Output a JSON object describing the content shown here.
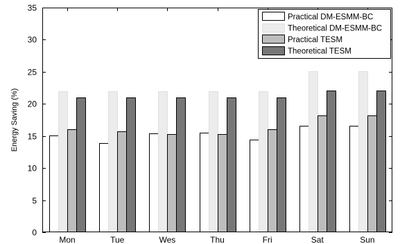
{
  "chart_data": {
    "type": "bar",
    "title": "",
    "xlabel": "",
    "ylabel": "Energy Saving (%)",
    "ylim": [
      0,
      35
    ],
    "yticks": [
      0,
      5,
      10,
      15,
      20,
      25,
      30,
      35
    ],
    "grid": false,
    "legend_position": "top-right",
    "categories": [
      "Mon",
      "Tue",
      "Wes",
      "Thu",
      "Fri",
      "Sat",
      "Sun"
    ],
    "series": [
      {
        "name": "Practical DM-ESMM-BC",
        "color": "#ffffff",
        "values": [
          15.1,
          13.9,
          15.4,
          15.5,
          14.4,
          16.6,
          16.6
        ]
      },
      {
        "name": "Theoretical DM-ESMM-BC",
        "color": "#ececec",
        "values": [
          22.0,
          22.0,
          22.0,
          22.0,
          22.0,
          25.1,
          25.1
        ]
      },
      {
        "name": "Practical TESM",
        "color": "#bdbdbd",
        "values": [
          16.1,
          15.7,
          15.3,
          15.3,
          16.0,
          18.2,
          18.2
        ]
      },
      {
        "name": "Theoretical TESM",
        "color": "#777777",
        "values": [
          21.0,
          21.0,
          21.0,
          21.0,
          21.0,
          22.1,
          22.1
        ]
      }
    ]
  }
}
